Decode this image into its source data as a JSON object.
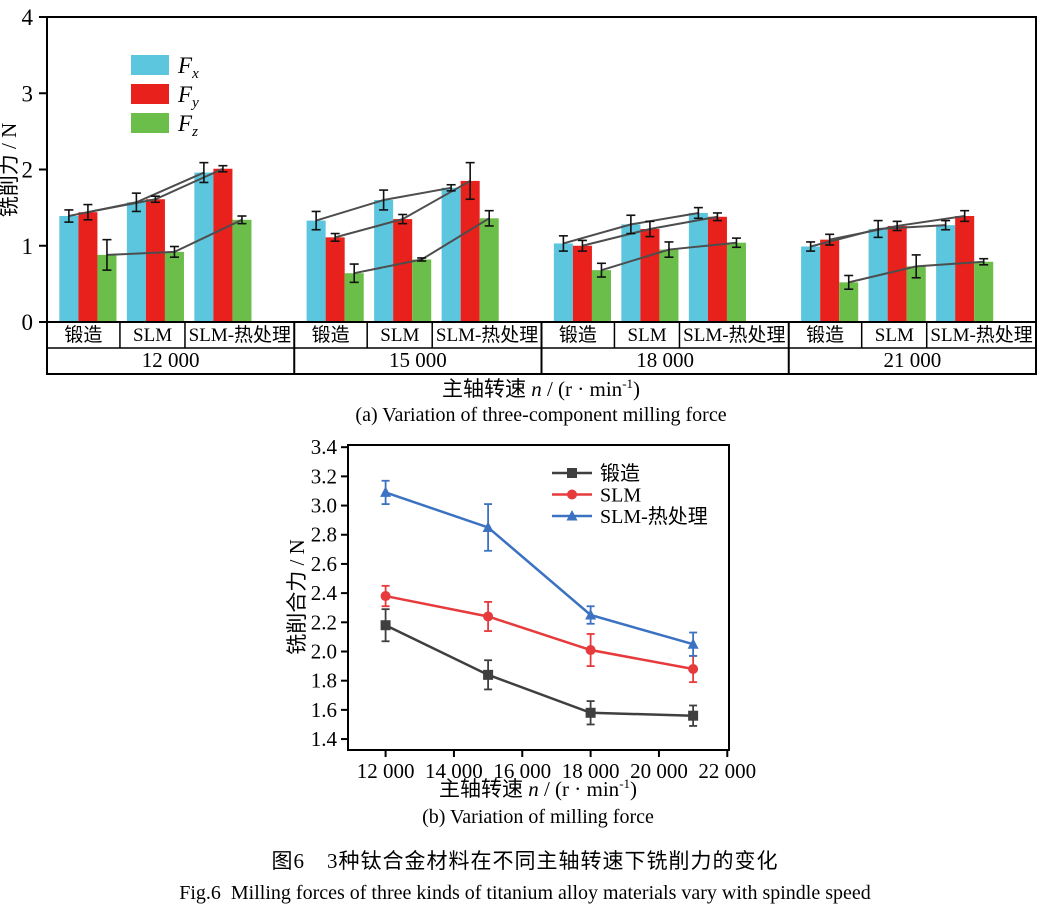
{
  "captions": {
    "zh": "图6　3种钛合金材料在不同主轴转速下铣削力的变化",
    "en": "Fig.6  Milling forces of three kinds of titanium alloy materials vary with spindle speed"
  },
  "colors": {
    "bar_fx": "#5bc6de",
    "bar_fy": "#e8211c",
    "bar_fz": "#6cbe4b",
    "connector": "#4d4d4d",
    "error": "#111111",
    "series_forged": "#3f3f3f",
    "series_slm": "#e63a3c",
    "series_slm_ht": "#3b72c1",
    "axis": "#000000"
  },
  "chart_data": [
    {
      "id": "a",
      "type": "bar",
      "subtitle": "(a) Variation of three-component milling force",
      "ylabel": "铣削力 / N",
      "xlabel": {
        "pre": "主轴转速 ",
        "var": "n",
        "mid": " / (r · min",
        "sup": "-1",
        "post": ")"
      },
      "ylim": [
        0,
        4
      ],
      "yticks": [
        "0",
        "1",
        "2",
        "3",
        "4"
      ],
      "legend": [
        {
          "main": "F",
          "sub": "x",
          "color_key": "bar_fx"
        },
        {
          "main": "F",
          "sub": "y",
          "color_key": "bar_fy"
        },
        {
          "main": "F",
          "sub": "z",
          "color_key": "bar_fz"
        }
      ],
      "components": [
        "Fx",
        "Fy",
        "Fz"
      ],
      "groups": [
        {
          "speed": "12 000",
          "materials": [
            {
              "name": "锻造",
              "values": [
                1.39,
                1.44,
                0.88
              ],
              "errors": [
                0.08,
                0.1,
                0.2
              ]
            },
            {
              "name": "SLM",
              "values": [
                1.57,
                1.61,
                0.92
              ],
              "errors": [
                0.12,
                0.04,
                0.07
              ]
            },
            {
              "name": "SLM-热处理",
              "values": [
                1.96,
                2.01,
                1.34
              ],
              "errors": [
                0.13,
                0.04,
                0.05
              ]
            }
          ]
        },
        {
          "speed": "15 000",
          "materials": [
            {
              "name": "锻造",
              "values": [
                1.33,
                1.11,
                0.64
              ],
              "errors": [
                0.12,
                0.05,
                0.12
              ]
            },
            {
              "name": "SLM",
              "values": [
                1.6,
                1.35,
                0.82
              ],
              "errors": [
                0.13,
                0.06,
                0.02
              ]
            },
            {
              "name": "SLM-热处理",
              "values": [
                1.76,
                1.85,
                1.36
              ],
              "errors": [
                0.04,
                0.24,
                0.1
              ]
            }
          ]
        },
        {
          "speed": "18 000",
          "materials": [
            {
              "name": "锻造",
              "values": [
                1.03,
                1.0,
                0.68
              ],
              "errors": [
                0.1,
                0.07,
                0.09
              ]
            },
            {
              "name": "SLM",
              "values": [
                1.28,
                1.22,
                0.95
              ],
              "errors": [
                0.12,
                0.1,
                0.1
              ]
            },
            {
              "name": "SLM-热处理",
              "values": [
                1.43,
                1.38,
                1.04
              ],
              "errors": [
                0.07,
                0.05,
                0.06
              ]
            }
          ]
        },
        {
          "speed": "21 000",
          "materials": [
            {
              "name": "锻造",
              "values": [
                0.99,
                1.08,
                0.52
              ],
              "errors": [
                0.06,
                0.07,
                0.09
              ]
            },
            {
              "name": "SLM",
              "values": [
                1.22,
                1.26,
                0.73
              ],
              "errors": [
                0.11,
                0.06,
                0.15
              ]
            },
            {
              "name": "SLM-热处理",
              "values": [
                1.27,
                1.39,
                0.79
              ],
              "errors": [
                0.06,
                0.07,
                0.04
              ]
            }
          ]
        }
      ]
    },
    {
      "id": "b",
      "type": "line",
      "subtitle": "(b) Variation of milling force",
      "ylabel": "铣削合力 / N",
      "xlabel": {
        "pre": "主轴转速 ",
        "var": "n",
        "mid": " / (r · min",
        "sup": "-1",
        "post": ")"
      },
      "xlim": [
        10900,
        22050
      ],
      "ylim": [
        1.325,
        3.415
      ],
      "xticks": [
        {
          "v": 12000,
          "label": "12 000"
        },
        {
          "v": 14000,
          "label": "14 000"
        },
        {
          "v": 16000,
          "label": "16 000"
        },
        {
          "v": 18000,
          "label": "18 000"
        },
        {
          "v": 20000,
          "label": "20 000"
        },
        {
          "v": 22000,
          "label": "22 000"
        }
      ],
      "yticks": [
        1.4,
        1.6,
        1.8,
        2.0,
        2.2,
        2.4,
        2.6,
        2.8,
        3.0,
        3.2,
        3.4
      ],
      "x": [
        12000,
        15000,
        18000,
        21000
      ],
      "series": [
        {
          "name": "锻造",
          "marker": "square",
          "color_key": "series_forged",
          "values": [
            2.18,
            1.84,
            1.58,
            1.56
          ],
          "errors": [
            0.11,
            0.1,
            0.08,
            0.07
          ]
        },
        {
          "name": "SLM",
          "marker": "circle",
          "color_key": "series_slm",
          "values": [
            2.38,
            2.24,
            2.01,
            1.88
          ],
          "errors": [
            0.07,
            0.1,
            0.11,
            0.09
          ]
        },
        {
          "name": "SLM-热处理",
          "marker": "triangle",
          "color_key": "series_slm_ht",
          "values": [
            3.09,
            2.85,
            2.25,
            2.05
          ],
          "errors": [
            0.08,
            0.16,
            0.06,
            0.08
          ]
        }
      ],
      "legend_position": "top-right"
    }
  ]
}
